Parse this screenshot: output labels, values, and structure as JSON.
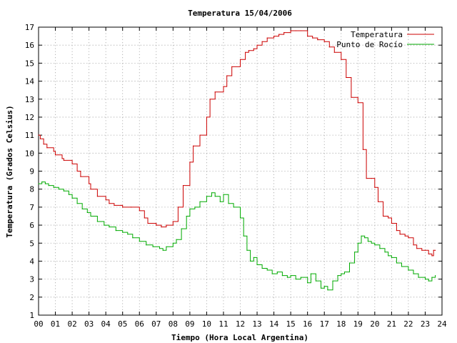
{
  "chart_data": {
    "type": "line",
    "title": "Temperatura 15/04/2006",
    "xlabel": "Tiempo (Hora Local Argentina)",
    "ylabel": "Temperatura (Grados Celsius)",
    "xlim": [
      0,
      24
    ],
    "ylim": [
      1,
      17
    ],
    "x_ticks": [
      "00",
      "01",
      "02",
      "03",
      "04",
      "05",
      "06",
      "07",
      "08",
      "09",
      "10",
      "11",
      "12",
      "13",
      "14",
      "15",
      "16",
      "17",
      "18",
      "19",
      "20",
      "21",
      "22",
      "23",
      "24"
    ],
    "y_ticks": [
      "1",
      "2",
      "3",
      "4",
      "5",
      "6",
      "7",
      "8",
      "9",
      "10",
      "11",
      "12",
      "13",
      "14",
      "15",
      "16",
      "17"
    ],
    "grid": true,
    "legend_position": "top-right",
    "series": [
      {
        "name": "Temperatura",
        "color": "#cc0000",
        "x": [
          0,
          0.1,
          0.3,
          0.5,
          0.9,
          1.0,
          1.4,
          1.5,
          2.0,
          2.3,
          2.5,
          3.0,
          3.1,
          3.5,
          4.0,
          4.2,
          4.5,
          4.9,
          5.0,
          5.5,
          6.0,
          6.3,
          6.5,
          7.0,
          7.3,
          7.6,
          8.0,
          8.3,
          8.6,
          9.0,
          9.2,
          9.6,
          10.0,
          10.2,
          10.5,
          11.0,
          11.2,
          11.5,
          12.0,
          12.3,
          12.5,
          12.8,
          13.0,
          13.3,
          13.6,
          14.0,
          14.3,
          14.6,
          15.0,
          15.3,
          15.6,
          16.0,
          16.3,
          16.6,
          17.0,
          17.3,
          17.6,
          18.0,
          18.3,
          18.6,
          19.0,
          19.3,
          19.5,
          19.8,
          20.0,
          20.2,
          20.5,
          20.8,
          21.0,
          21.3,
          21.5,
          21.8,
          22.0,
          22.3,
          22.5,
          22.8,
          23.0,
          23.2,
          23.4,
          23.5,
          23.6
        ],
        "values": [
          11.0,
          10.8,
          10.5,
          10.3,
          10.1,
          9.9,
          9.7,
          9.6,
          9.4,
          9.0,
          8.7,
          8.3,
          8.0,
          7.6,
          7.4,
          7.2,
          7.1,
          7.1,
          7.0,
          7.0,
          6.8,
          6.4,
          6.1,
          6.0,
          5.9,
          6.0,
          6.2,
          7.0,
          8.2,
          9.5,
          10.4,
          11.0,
          12.0,
          13.0,
          13.4,
          13.7,
          14.3,
          14.8,
          15.2,
          15.6,
          15.7,
          15.8,
          16.0,
          16.2,
          16.4,
          16.5,
          16.6,
          16.7,
          16.8,
          16.8,
          16.8,
          16.5,
          16.4,
          16.3,
          16.2,
          15.9,
          15.6,
          15.2,
          14.2,
          13.1,
          12.8,
          10.2,
          8.6,
          8.6,
          8.1,
          7.3,
          6.5,
          6.4,
          6.1,
          5.7,
          5.5,
          5.4,
          5.3,
          4.9,
          4.7,
          4.6,
          4.6,
          4.4,
          4.3,
          4.6,
          4.6
        ]
      },
      {
        "name": "Punto de Rocío",
        "color": "#00aa00",
        "x": [
          0,
          0.2,
          0.4,
          0.6,
          0.9,
          1.2,
          1.5,
          1.8,
          2.0,
          2.3,
          2.6,
          2.9,
          3.1,
          3.5,
          3.9,
          4.2,
          4.6,
          5.0,
          5.3,
          5.6,
          6.0,
          6.4,
          6.8,
          7.2,
          7.4,
          7.6,
          8.0,
          8.2,
          8.5,
          8.8,
          9.0,
          9.3,
          9.6,
          10.0,
          10.3,
          10.5,
          10.8,
          11.0,
          11.3,
          11.6,
          12.0,
          12.2,
          12.4,
          12.6,
          12.8,
          13.0,
          13.3,
          13.6,
          13.9,
          14.2,
          14.5,
          14.8,
          15.0,
          15.3,
          15.6,
          16.0,
          16.2,
          16.5,
          16.8,
          17.0,
          17.2,
          17.5,
          17.8,
          18.0,
          18.2,
          18.5,
          18.8,
          19.0,
          19.2,
          19.4,
          19.6,
          19.8,
          20.0,
          20.3,
          20.6,
          20.8,
          21.0,
          21.3,
          21.6,
          22.0,
          22.3,
          22.6,
          23.0,
          23.2,
          23.4,
          23.6
        ],
        "values": [
          8.3,
          8.4,
          8.3,
          8.2,
          8.1,
          8.0,
          7.9,
          7.7,
          7.5,
          7.2,
          6.9,
          6.7,
          6.5,
          6.2,
          6.0,
          5.9,
          5.7,
          5.6,
          5.5,
          5.3,
          5.1,
          4.9,
          4.8,
          4.7,
          4.6,
          4.8,
          5.0,
          5.2,
          5.8,
          6.5,
          6.9,
          7.0,
          7.3,
          7.6,
          7.8,
          7.6,
          7.3,
          7.7,
          7.2,
          7.0,
          6.4,
          5.4,
          4.6,
          4.0,
          4.2,
          3.8,
          3.6,
          3.5,
          3.3,
          3.4,
          3.2,
          3.1,
          3.2,
          3.0,
          3.1,
          2.8,
          3.3,
          2.9,
          2.5,
          2.6,
          2.4,
          2.9,
          3.2,
          3.3,
          3.4,
          3.9,
          4.5,
          5.0,
          5.4,
          5.3,
          5.1,
          5.0,
          4.9,
          4.7,
          4.5,
          4.3,
          4.2,
          3.9,
          3.7,
          3.5,
          3.3,
          3.1,
          3.0,
          2.9,
          3.1,
          3.2
        ]
      }
    ]
  }
}
